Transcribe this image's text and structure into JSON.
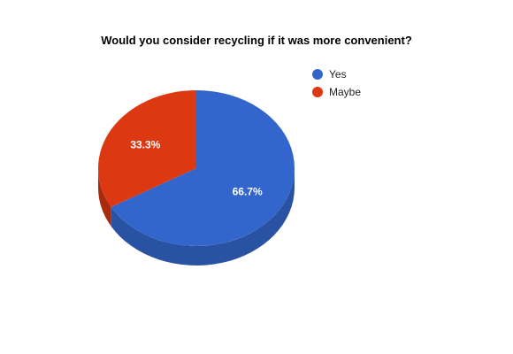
{
  "chart_data": {
    "type": "pie",
    "title": "Would you consider recycling if it was more convenient?",
    "style": "3d",
    "legend_position": "right",
    "slices": [
      {
        "label": "Yes",
        "value": 66.7,
        "display": "66.7%",
        "color": "#3366CC",
        "side_color": "#2A52A3"
      },
      {
        "label": "Maybe",
        "value": 33.3,
        "display": "33.3%",
        "color": "#DC3912",
        "side_color": "#A82B0E"
      }
    ]
  }
}
